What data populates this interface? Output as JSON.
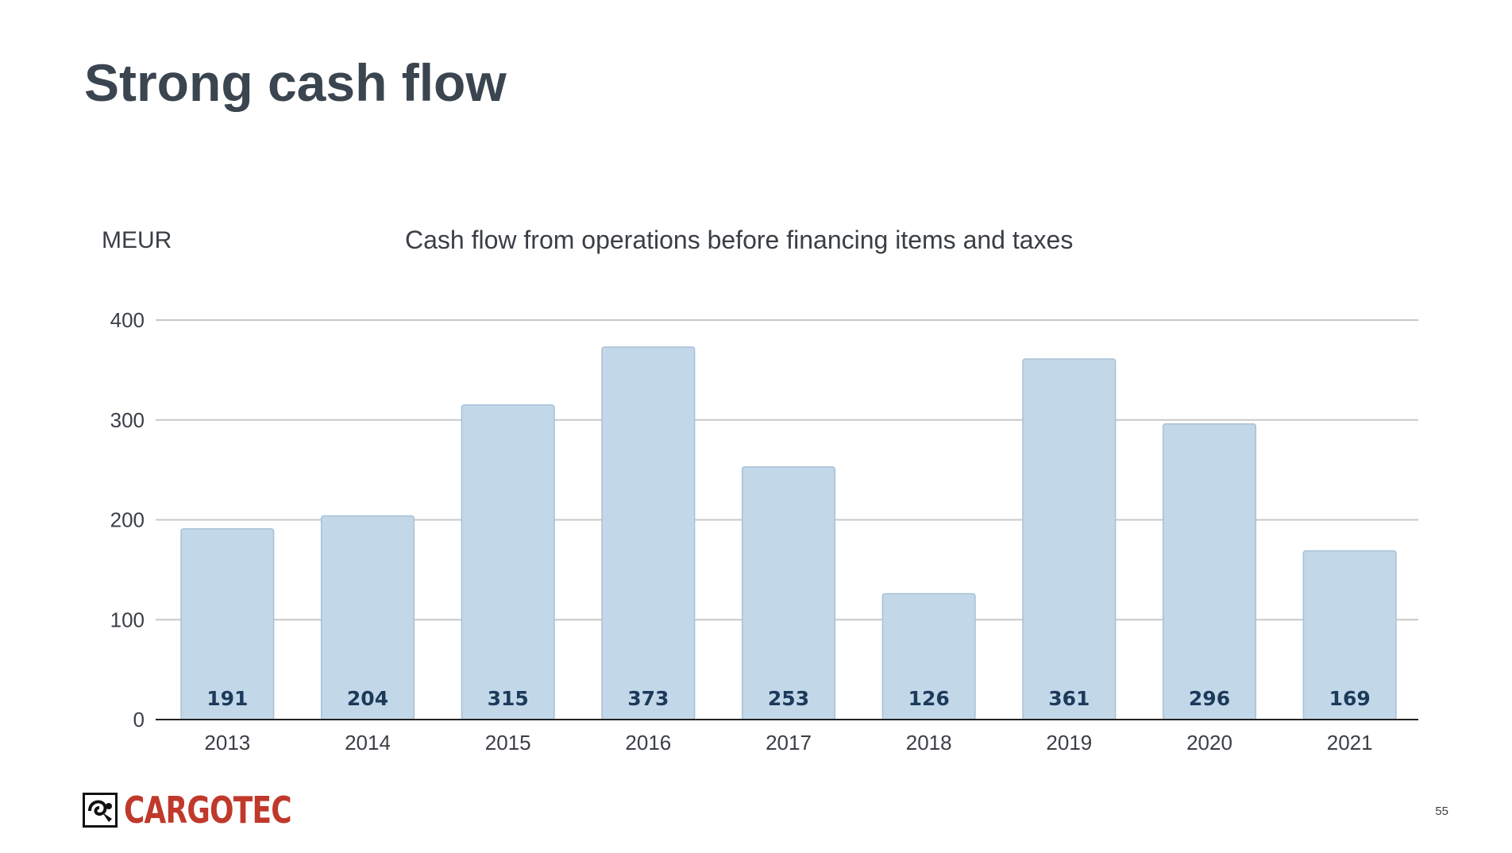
{
  "slide": {
    "title": "Strong cash flow",
    "page_number": "55"
  },
  "logo": {
    "text": "CARGOTEC",
    "brand_color": "#c0392b"
  },
  "colors": {
    "bar_fill": "#c2d7e8",
    "bar_stroke": "#a9c1d6",
    "data_label": "#1c3a5a",
    "grid": "#c8c8c8",
    "text": "#3a3f45"
  },
  "chart_data": {
    "type": "bar",
    "title": "Cash flow from operations before financing items and taxes",
    "ylabel": "MEUR",
    "xlabel": "",
    "categories": [
      "2013",
      "2014",
      "2015",
      "2016",
      "2017",
      "2018",
      "2019",
      "2020",
      "2021"
    ],
    "values": [
      191,
      204,
      315,
      373,
      253,
      126,
      361,
      296,
      169
    ],
    "data_labels": [
      "191",
      "204",
      "315",
      "373",
      "253",
      "126",
      "361",
      "296",
      "169"
    ],
    "ylim": [
      0,
      400
    ],
    "yticks": [
      0,
      100,
      200,
      300,
      400
    ],
    "ytick_labels": [
      "0",
      "100",
      "200",
      "300",
      "400"
    ],
    "grid": true,
    "legend": "none"
  }
}
